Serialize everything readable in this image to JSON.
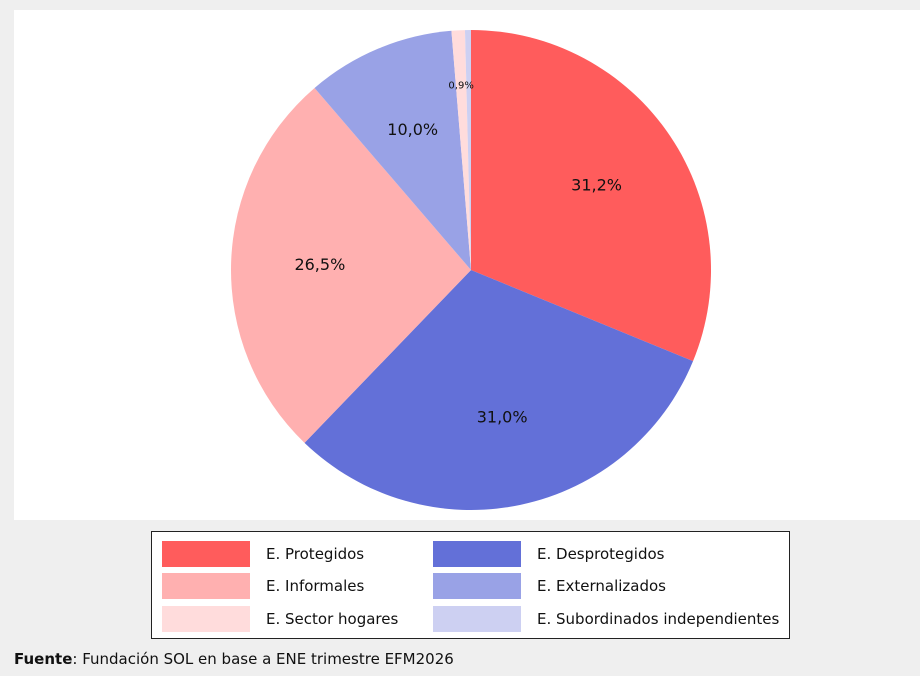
{
  "chart_data": {
    "type": "pie",
    "title": "",
    "series": [
      {
        "name": "E. Protegidos",
        "value": 31.2,
        "label": "31,2%",
        "color": "#ff5c5c"
      },
      {
        "name": "E. Desprotegidos",
        "value": 31.0,
        "label": "31,0%",
        "color": "#6370d8"
      },
      {
        "name": "E. Informales",
        "value": 26.5,
        "label": "26,5%",
        "color": "#ffb0b0"
      },
      {
        "name": "E. Externalizados",
        "value": 10.0,
        "label": "10,0%",
        "color": "#99a2e6"
      },
      {
        "name": "E. Sector hogares",
        "value": 0.9,
        "label": "0,9%",
        "color": "#ffdcdc"
      },
      {
        "name": "E. Subordinados independientes",
        "value": 0.4,
        "label": "",
        "color": "#cdd0f2"
      }
    ],
    "legend_placement": "bottom"
  },
  "source": {
    "prefix": "Fuente",
    "text": ": Fundación SOL en base a ENE trimestre EFM2026"
  }
}
